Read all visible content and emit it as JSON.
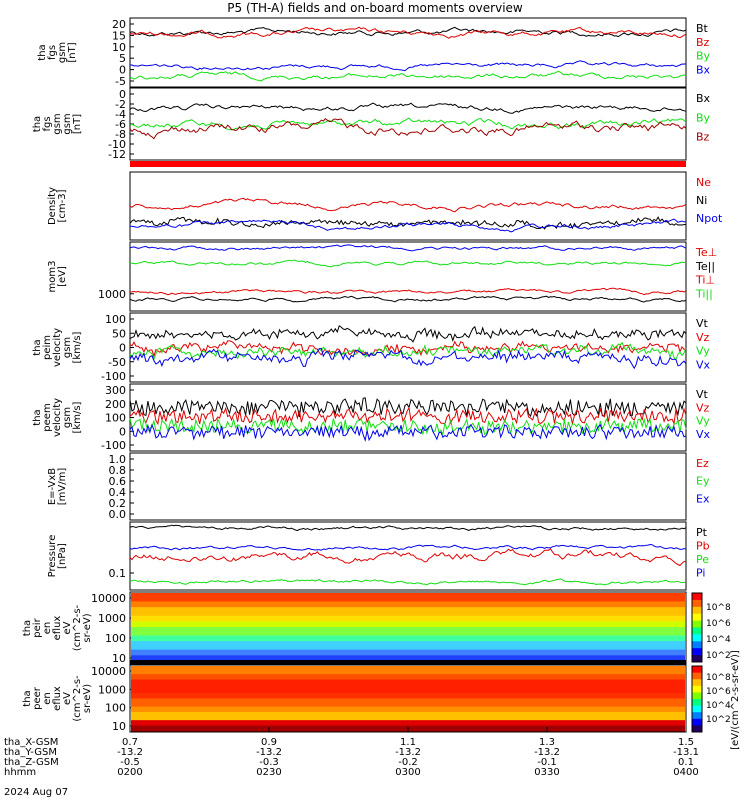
{
  "title": "P5 (TH-A) fields and on-board moments overview",
  "colors": {
    "black": "#000000",
    "red": "#e00000",
    "green": "#10e010",
    "blue": "#0000ee",
    "darkred": "#a00000"
  },
  "panels": [
    {
      "id": "fgs-gsm",
      "ylabel": [
        "tha",
        "fgs",
        "gsm",
        "[nT]"
      ],
      "yticks": [
        "20",
        "15",
        "10",
        "5",
        "0",
        "-5"
      ],
      "legend": [
        {
          "label": "Bt",
          "color": "#000000"
        },
        {
          "label": "Bz",
          "color": "#e00000"
        },
        {
          "label": "By",
          "color": "#10e010"
        },
        {
          "label": "Bx",
          "color": "#0000ee"
        }
      ]
    },
    {
      "id": "fgs-gsm-zoom",
      "ylabel": [
        "tha",
        "fgs",
        "gsm",
        "gsm",
        "[nT]"
      ],
      "yticks": [
        "0",
        "-2",
        "-4",
        "-6",
        "-8",
        "-10",
        "-12"
      ],
      "legend": [
        {
          "label": "Bx",
          "color": "#000000"
        },
        {
          "label": "By",
          "color": "#10e010"
        },
        {
          "label": "Bz",
          "color": "#a00000"
        }
      ]
    },
    {
      "id": "density",
      "ylabel": [
        "Density",
        "[cm-3]"
      ],
      "yticks": [],
      "legend": [
        {
          "label": "Ne",
          "color": "#e00000"
        },
        {
          "label": "Ni",
          "color": "#000000"
        },
        {
          "label": "Npot",
          "color": "#0000ee"
        }
      ]
    },
    {
      "id": "temperature",
      "ylabel": [
        "mom3",
        "[eV]"
      ],
      "yticks": [
        "1000"
      ],
      "legend": [
        {
          "label": "Te⊥",
          "color": "#e00000"
        },
        {
          "label": "Te||",
          "color": "#000000"
        },
        {
          "label": "Ti⊥",
          "color": "#e00000"
        },
        {
          "label": "Ti||",
          "color": "#10e010"
        }
      ]
    },
    {
      "id": "peim-velocity",
      "ylabel": [
        "tha",
        "peim",
        "velocity",
        "gsm",
        "[km/s]"
      ],
      "yticks": [
        "100",
        "50",
        "0",
        "-50",
        "-100"
      ],
      "legend": [
        {
          "label": "Vt",
          "color": "#000000"
        },
        {
          "label": "Vz",
          "color": "#e00000"
        },
        {
          "label": "Vy",
          "color": "#10e010"
        },
        {
          "label": "Vx",
          "color": "#0000ee"
        }
      ]
    },
    {
      "id": "peem-velocity",
      "ylabel": [
        "tha",
        "peem",
        "velocity",
        "gsm",
        "[km/s]"
      ],
      "yticks": [
        "300",
        "200",
        "100",
        "0",
        "-100"
      ],
      "legend": [
        {
          "label": "Vt",
          "color": "#000000"
        },
        {
          "label": "Vz",
          "color": "#e00000"
        },
        {
          "label": "Vy",
          "color": "#10e010"
        },
        {
          "label": "Vx",
          "color": "#0000ee"
        }
      ]
    },
    {
      "id": "efield",
      "ylabel": [
        "E=-VxB",
        "[mV/m]"
      ],
      "yticks": [
        "1.0",
        "0.8",
        "0.6",
        "0.4",
        "0.2",
        "0.0"
      ],
      "legend": [
        {
          "label": "Ez",
          "color": "#e00000"
        },
        {
          "label": "Ey",
          "color": "#10e010"
        },
        {
          "label": "Ex",
          "color": "#0000ee"
        }
      ]
    },
    {
      "id": "pressure",
      "ylabel": [
        "Pressure",
        "[nPa]"
      ],
      "yticks": [
        "0.1"
      ],
      "legend": [
        {
          "label": "Pt",
          "color": "#000000"
        },
        {
          "label": "Pb",
          "color": "#e00000"
        },
        {
          "label": "Pe",
          "color": "#10e010"
        },
        {
          "label": "Pi",
          "color": "#0000ee"
        }
      ]
    },
    {
      "id": "peir-spec",
      "ylabel": [
        "tha",
        "peir",
        "en",
        "eflux",
        "eV",
        "(cm^2-s-",
        "sr-eV)"
      ],
      "yticks": [
        "10000",
        "1000",
        "100",
        "10"
      ],
      "legend": []
    },
    {
      "id": "peer-spec",
      "ylabel": [
        "tha",
        "peer",
        "en",
        "eflux",
        "eV",
        "(cm^2-s-",
        "sr-eV)"
      ],
      "yticks": [
        "10000",
        "1000",
        "100",
        "10"
      ],
      "legend": []
    }
  ],
  "colorbar": {
    "label": "[eV/(cm^2-s-sr-eV)]",
    "ticks_upper": [
      "10^8",
      "10^6",
      "10^4",
      "10^2"
    ],
    "ticks_lower": [
      "10^8",
      "10^6",
      "10^4",
      "10^2"
    ]
  },
  "xaxis": {
    "rows": [
      {
        "label": "tha_X-GSM",
        "values": [
          "0.7",
          "0.9",
          "1.1",
          "1.3",
          "1.5"
        ]
      },
      {
        "label": "tha_Y-GSM",
        "values": [
          "-13.2",
          "-13.2",
          "-13.2",
          "-13.2",
          "-13.1"
        ]
      },
      {
        "label": "tha_Z-GSM",
        "values": [
          "-0.5",
          "-0.3",
          "-0.2",
          "-0.1",
          "0.1"
        ]
      },
      {
        "label": "hhmm",
        "values": [
          "0200",
          "0230",
          "0300",
          "0330",
          "0400"
        ]
      }
    ],
    "date": "2024 Aug 07"
  },
  "chart_data": {
    "type": "line",
    "title": "P5 (TH-A) fields and on-board moments overview",
    "x_time": [
      "0200",
      "0230",
      "0300",
      "0330",
      "0400"
    ],
    "series_summary": [
      {
        "panel": "fgs-gsm",
        "name": "Bt",
        "approx_range_nT": [
          12,
          24
        ]
      },
      {
        "panel": "fgs-gsm",
        "name": "Bz",
        "approx_range_nT": [
          12,
          23
        ]
      },
      {
        "panel": "fgs-gsm",
        "name": "By",
        "approx_range_nT": [
          -2,
          3
        ]
      },
      {
        "panel": "fgs-gsm",
        "name": "Bx",
        "approx_range_nT": [
          2,
          6
        ]
      },
      {
        "panel": "peim-velocity",
        "name": "Vt",
        "approx_range_kms": [
          0,
          120
        ]
      },
      {
        "panel": "peem-velocity",
        "name": "Vt",
        "approx_range_kms": [
          0,
          300
        ]
      }
    ]
  }
}
